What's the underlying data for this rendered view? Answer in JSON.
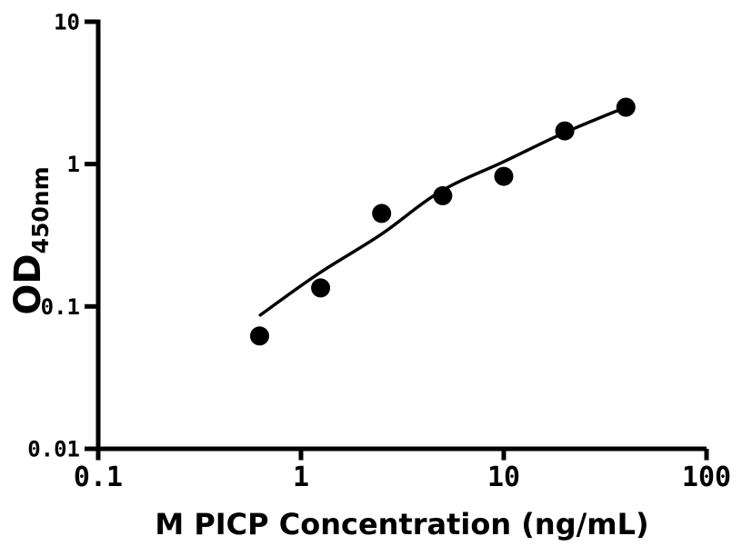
{
  "page": {
    "background": "#ffffff",
    "foreground": "#000000"
  },
  "chart_data": {
    "type": "scatter",
    "title": "",
    "xlabel": "M PICP Concentration (ng/mL)",
    "ylabel": "OD",
    "ylabel_subscript": "450nm",
    "grid": false,
    "legend": "none",
    "background": "#ffffff",
    "axis_color": "#000000",
    "x_axis": {
      "scale": "log",
      "min": 0.1,
      "max": 100,
      "ticks": [
        {
          "value": 0.1,
          "label": "0.1"
        },
        {
          "value": 1,
          "label": "1"
        },
        {
          "value": 10,
          "label": "10"
        },
        {
          "value": 100,
          "label": "100"
        }
      ]
    },
    "y_axis": {
      "scale": "log",
      "min": 0.01,
      "max": 10,
      "ticks": [
        {
          "value": 0.01,
          "label": "0.01"
        },
        {
          "value": 0.1,
          "label": "0.1"
        },
        {
          "value": 1,
          "label": "1"
        },
        {
          "value": 10,
          "label": "10"
        }
      ]
    },
    "series": [
      {
        "name": "standard-curve-points",
        "marker": "filled-circle",
        "marker_radius": 10.5,
        "color": "#000000",
        "points": [
          {
            "x": 0.625,
            "y": 0.062
          },
          {
            "x": 1.25,
            "y": 0.135
          },
          {
            "x": 2.5,
            "y": 0.45
          },
          {
            "x": 5,
            "y": 0.6
          },
          {
            "x": 10,
            "y": 0.82
          },
          {
            "x": 20,
            "y": 1.71
          },
          {
            "x": 40,
            "y": 2.51
          }
        ]
      }
    ],
    "fit_curve": {
      "name": "fitted-curve",
      "color": "#000000",
      "stroke_width": 3.5,
      "points": [
        {
          "x": 0.63,
          "y": 0.087
        },
        {
          "x": 1.22,
          "y": 0.17
        },
        {
          "x": 2.48,
          "y": 0.32
        },
        {
          "x": 4.85,
          "y": 0.64
        },
        {
          "x": 10,
          "y": 1.04
        },
        {
          "x": 20.1,
          "y": 1.67
        },
        {
          "x": 40,
          "y": 2.51
        }
      ]
    }
  }
}
